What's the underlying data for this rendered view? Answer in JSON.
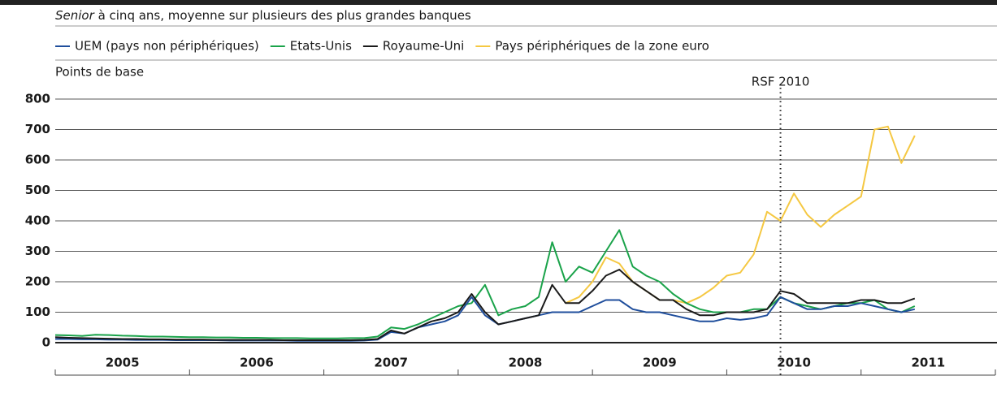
{
  "chart_data": {
    "type": "line",
    "subtitle_italic": "Senior",
    "subtitle": "à cinq ans, moyenne sur plusieurs des plus grandes banques",
    "ylabel": "Points de base",
    "annotation": {
      "text": "RSF 2010",
      "x": 2010.4
    },
    "x": [
      2005.0,
      2005.1,
      2005.2,
      2005.3,
      2005.4,
      2005.5,
      2005.6,
      2005.7,
      2005.8,
      2005.9,
      2006.0,
      2006.1,
      2006.2,
      2006.3,
      2006.4,
      2006.5,
      2006.6,
      2006.7,
      2006.8,
      2006.9,
      2007.0,
      2007.1,
      2007.2,
      2007.3,
      2007.4,
      2007.5,
      2007.6,
      2007.7,
      2007.8,
      2007.9,
      2008.0,
      2008.1,
      2008.2,
      2008.3,
      2008.4,
      2008.5,
      2008.6,
      2008.7,
      2008.8,
      2008.9,
      2009.0,
      2009.1,
      2009.2,
      2009.3,
      2009.4,
      2009.5,
      2009.6,
      2009.7,
      2009.8,
      2009.9,
      2010.0,
      2010.1,
      2010.2,
      2010.3,
      2010.4,
      2010.5,
      2010.6,
      2010.7,
      2010.8,
      2010.9,
      2011.0,
      2011.1,
      2011.2,
      2011.3,
      2011.4
    ],
    "series": [
      {
        "name": "UEM (pays non périphériques)",
        "color": "#1f4e9c",
        "values": [
          12,
          12,
          11,
          11,
          10,
          10,
          9,
          9,
          9,
          8,
          8,
          8,
          8,
          7,
          7,
          7,
          7,
          7,
          6,
          6,
          6,
          6,
          6,
          7,
          10,
          35,
          30,
          50,
          60,
          70,
          90,
          150,
          90,
          60,
          70,
          80,
          90,
          100,
          100,
          100,
          120,
          140,
          140,
          110,
          100,
          100,
          90,
          80,
          70,
          70,
          80,
          75,
          80,
          90,
          150,
          130,
          110,
          110,
          120,
          120,
          130,
          120,
          110,
          100,
          110
        ]
      },
      {
        "name": "Etats-Unis",
        "color": "#1aa34a",
        "values": [
          25,
          24,
          22,
          26,
          25,
          23,
          22,
          20,
          20,
          19,
          18,
          18,
          17,
          17,
          16,
          16,
          15,
          15,
          15,
          14,
          14,
          14,
          15,
          15,
          20,
          50,
          45,
          60,
          80,
          100,
          120,
          130,
          190,
          90,
          110,
          120,
          150,
          330,
          200,
          250,
          230,
          300,
          370,
          250,
          220,
          200,
          160,
          130,
          110,
          100,
          100,
          100,
          110,
          110,
          150,
          130,
          120,
          110,
          120,
          130,
          130,
          140,
          110,
          100,
          120
        ]
      },
      {
        "name": "Royaume-Uni",
        "color": "#1a1a1a",
        "values": [
          18,
          16,
          15,
          14,
          13,
          12,
          12,
          11,
          11,
          10,
          10,
          10,
          9,
          9,
          9,
          9,
          9,
          8,
          8,
          8,
          8,
          8,
          8,
          9,
          12,
          40,
          30,
          50,
          70,
          80,
          100,
          160,
          100,
          60,
          70,
          80,
          90,
          190,
          130,
          130,
          170,
          220,
          240,
          200,
          170,
          140,
          140,
          110,
          90,
          90,
          100,
          100,
          100,
          110,
          170,
          160,
          130,
          130,
          130,
          130,
          140,
          140,
          130,
          130,
          145
        ]
      },
      {
        "name": "Pays périphériques de la zone euro",
        "color": "#f5c842",
        "values": [
          null,
          null,
          null,
          null,
          null,
          null,
          null,
          null,
          null,
          null,
          null,
          null,
          null,
          null,
          null,
          null,
          null,
          null,
          null,
          null,
          null,
          null,
          null,
          null,
          null,
          null,
          null,
          null,
          null,
          null,
          null,
          null,
          null,
          null,
          null,
          null,
          null,
          null,
          130,
          150,
          200,
          280,
          260,
          200,
          170,
          140,
          140,
          130,
          150,
          180,
          220,
          230,
          290,
          430,
          400,
          490,
          420,
          380,
          420,
          450,
          480,
          700,
          710,
          590,
          680
        ]
      }
    ],
    "xlim": [
      2005,
      2012
    ],
    "xticks": [
      2005,
      2006,
      2007,
      2008,
      2009,
      2010,
      2011,
      2012
    ],
    "year_labels": [
      2005,
      2006,
      2007,
      2008,
      2009,
      2010,
      2011
    ],
    "ylim": [
      0,
      800
    ],
    "yticks": [
      0,
      100,
      200,
      300,
      400,
      500,
      600,
      700,
      800
    ],
    "grid": true
  }
}
